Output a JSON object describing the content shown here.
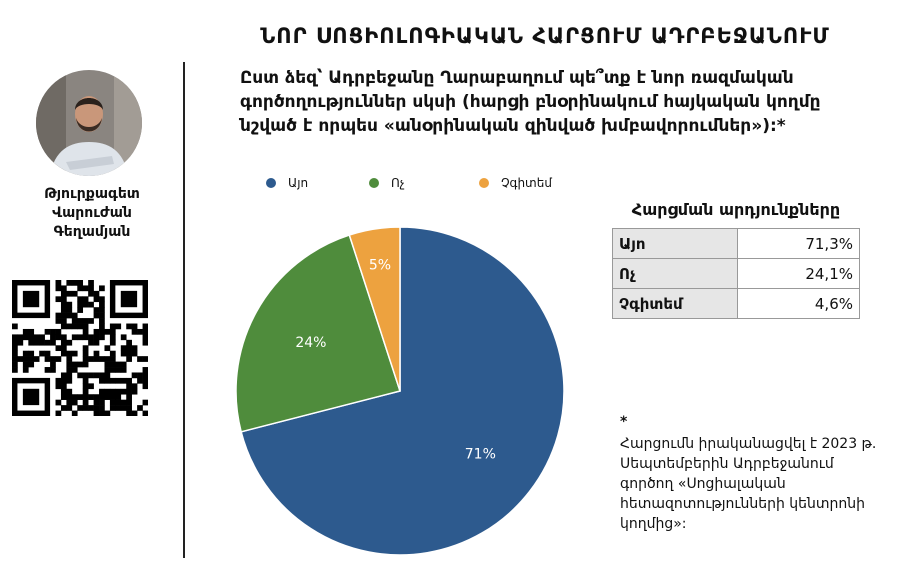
{
  "header": {
    "title": "ՆՈՐ ՍՈՑԻՈԼՈԳԻԱԿԱՆ ՀԱՐՑՈՒՄ ԱԴՐԲԵՋԱՆՈՒՄ"
  },
  "author": {
    "role": "Թյուրքագետ",
    "first_name": "Վարուժան",
    "last_name": "Գեղամյան"
  },
  "question": "Ըստ ձեզ՝ Ադրբեջանը Ղարաբաղում պե՞տք է նոր ռազմական գործողություններ սկսի (հարցի բնօրինակում հայկական կողմը նշված է որպես «անօրինական զինված խմբավորումներ»):*",
  "colors": {
    "yes": "#2d5a8e",
    "no": "#4f8c3c",
    "dont_know": "#eda23f"
  },
  "chart_data": {
    "type": "pie",
    "legend_position": "top",
    "slices": [
      {
        "label": "Այո",
        "value": 71,
        "display": "71%",
        "color": "#2d5a8e"
      },
      {
        "label": "Ոչ",
        "value": 24,
        "display": "24%",
        "color": "#4f8c3c"
      },
      {
        "label": "Չգիտեմ",
        "value": 5,
        "display": "5%",
        "color": "#eda23f"
      }
    ]
  },
  "results": {
    "title": "Հարցման արդյունքները",
    "rows": [
      {
        "label": "Այո",
        "value": "71,3%"
      },
      {
        "label": "Ոչ",
        "value": "24,1%"
      },
      {
        "label": "Չգիտեմ",
        "value": "4,6%"
      }
    ]
  },
  "footnote": {
    "marker": "*",
    "text": "Հարցումն իրականացվել է 2023 թ. Սեպտեմբերին Ադրբեջանում գործող «Սոցիալական հետազոտությունների կենտրոնի կողմից»:"
  }
}
